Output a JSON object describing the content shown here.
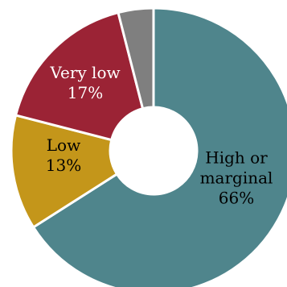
{
  "chart_data": {
    "type": "pie",
    "donut": true,
    "slices": [
      {
        "label": "High or marginal",
        "label_lines": [
          "High or",
          "marginal"
        ],
        "value_text": "66%",
        "value": 66,
        "color": "#4f858c",
        "text_color": "#000000"
      },
      {
        "label": "Low",
        "label_lines": [
          "Low"
        ],
        "value_text": "13%",
        "value": 13,
        "color": "#c4961a",
        "text_color": "#000000"
      },
      {
        "label": "Very low",
        "label_lines": [
          "Very low"
        ],
        "value_text": "17%",
        "value": 17,
        "color": "#9b2335",
        "text_color": "#ffffff"
      },
      {
        "label": "",
        "label_lines": [],
        "value_text": "",
        "value": 4,
        "color": "#7f7f7f",
        "text_color": "#000000"
      }
    ]
  }
}
